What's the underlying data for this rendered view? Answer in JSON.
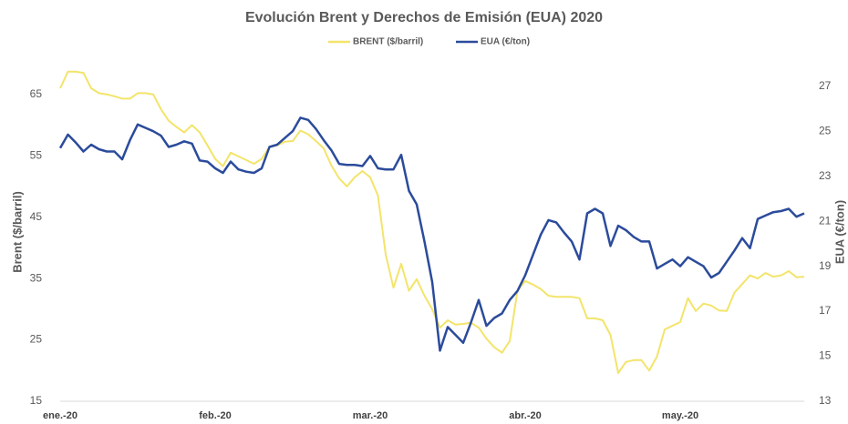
{
  "chart_data": {
    "type": "line",
    "title": "Evolución Brent y Derechos de Emisión (EUA) 2020",
    "y_label": "Brent ($/barril)",
    "y2_label": "EUA (€/ton)",
    "categories": [
      "ene.-20",
      null,
      null,
      null,
      null,
      null,
      null,
      null,
      null,
      null,
      null,
      null,
      null,
      null,
      null,
      null,
      null,
      null,
      null,
      null,
      "feb.-20",
      null,
      null,
      null,
      null,
      null,
      null,
      null,
      null,
      null,
      null,
      null,
      null,
      null,
      null,
      null,
      null,
      null,
      null,
      null,
      "mar.-20",
      null,
      null,
      null,
      null,
      null,
      null,
      null,
      null,
      null,
      null,
      null,
      null,
      null,
      null,
      null,
      null,
      null,
      null,
      null,
      "abr.-20",
      null,
      null,
      null,
      null,
      null,
      null,
      null,
      null,
      null,
      null,
      null,
      null,
      null,
      null,
      null,
      null,
      null,
      null,
      null,
      "may.-20",
      null,
      null,
      null,
      null,
      null,
      null,
      null,
      null,
      null,
      null,
      null,
      null,
      null,
      null,
      null,
      null
    ],
    "series": [
      {
        "name": "BRENT ($/barril)",
        "color": "#f3e46a",
        "axis": "y",
        "values": [
          66,
          68.7,
          68.7,
          68.5,
          66,
          65.2,
          65,
          64.7,
          64.3,
          64.3,
          65.2,
          65.2,
          65,
          62.6,
          60.7,
          59.7,
          58.8,
          60,
          58.8,
          56.7,
          54.5,
          53.3,
          55.5,
          54.9,
          54.3,
          53.7,
          54.5,
          56.4,
          56.7,
          57.3,
          57.4,
          59.1,
          58.5,
          57.4,
          56.2,
          53.4,
          51.3,
          50,
          51.5,
          52.5,
          51.5,
          48.5,
          38.9,
          33.5,
          37.4,
          33,
          34.9,
          32.2,
          30,
          27,
          28.2,
          27.5,
          27.6,
          27.8,
          27,
          25.2,
          23.8,
          22.9,
          24.8,
          33,
          34.6,
          34,
          33.3,
          32.2,
          32,
          32,
          32,
          31.8,
          28.5,
          28.5,
          28.2,
          25.8,
          19.6,
          21.4,
          21.7,
          21.7,
          20,
          22.3,
          26.7,
          27.3,
          27.9,
          31.8,
          29.7,
          30.9,
          30.6,
          29.8,
          29.7,
          32.7,
          34.1,
          35.5,
          35,
          35.9,
          35.3,
          35.5,
          36.2,
          35.2,
          35.3
        ]
      },
      {
        "name": "EUA (€/ton)",
        "color": "#2b4b9b",
        "axis": "y2",
        "values": [
          24.25,
          24.85,
          24.5,
          24.1,
          24.4,
          24.2,
          24.1,
          24.1,
          23.75,
          24.6,
          25.3,
          25.15,
          25,
          24.8,
          24.3,
          24.4,
          24.55,
          24.45,
          23.7,
          23.65,
          23.35,
          23.15,
          23.65,
          23.3,
          23.2,
          23.15,
          23.35,
          24.3,
          24.4,
          24.7,
          25,
          25.6,
          25.5,
          25.1,
          24.6,
          24.15,
          23.55,
          23.5,
          23.5,
          23.45,
          23.9,
          23.35,
          23.3,
          23.3,
          23.95,
          22.35,
          21.75,
          20.1,
          18.3,
          15.25,
          16.3,
          15.95,
          15.6,
          16.5,
          17.5,
          16.35,
          16.7,
          16.9,
          17.5,
          17.9,
          18.6,
          19.5,
          20.4,
          21.05,
          20.95,
          20.5,
          20.1,
          19.3,
          21.35,
          21.55,
          21.35,
          19.9,
          20.8,
          20.6,
          20.3,
          20.1,
          20.1,
          18.9,
          19.1,
          19.3,
          19,
          19.4,
          19.2,
          19,
          18.5,
          18.7,
          19.2,
          19.7,
          20.25,
          19.8,
          21.1,
          21.25,
          21.4,
          21.45,
          21.55,
          21.2,
          21.35
        ]
      }
    ],
    "ylim": [
      15,
      70
    ],
    "yticks": [
      15,
      25,
      35,
      45,
      55,
      65
    ],
    "y2lim": [
      13,
      28
    ],
    "y2ticks": [
      13,
      15,
      17,
      19,
      21,
      23,
      25,
      27
    ],
    "grid": false,
    "legend": "top"
  }
}
